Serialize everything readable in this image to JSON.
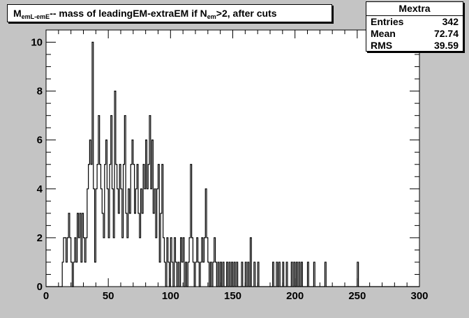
{
  "title": {
    "main": "M",
    "sub1": "emL-emE",
    "mid": "-- mass of leadingEM-extraEM if N",
    "sub2": "em",
    "tail": ">2, after cuts"
  },
  "stats": {
    "name": "Mextra",
    "entries_label": "Entries",
    "entries_value": "342",
    "mean_label": "Mean",
    "mean_value": "72.74",
    "rms_label": "RMS",
    "rms_value": "39.59"
  },
  "chart_data": {
    "type": "bar",
    "histogram": "step",
    "xlim": [
      0,
      300
    ],
    "ylim": [
      0,
      10.5
    ],
    "bin_width": 1,
    "xticks": [
      0,
      50,
      100,
      150,
      200,
      250,
      300
    ],
    "yticks": [
      0,
      2,
      4,
      6,
      8,
      10
    ],
    "bins": [
      [
        13,
        1
      ],
      [
        14,
        2
      ],
      [
        15,
        2
      ],
      [
        16,
        1
      ],
      [
        17,
        2
      ],
      [
        18,
        3
      ],
      [
        19,
        2
      ],
      [
        20,
        1
      ],
      [
        21,
        0
      ],
      [
        22,
        1
      ],
      [
        23,
        2
      ],
      [
        24,
        1
      ],
      [
        25,
        3
      ],
      [
        26,
        2
      ],
      [
        27,
        3
      ],
      [
        28,
        1
      ],
      [
        29,
        3
      ],
      [
        30,
        2
      ],
      [
        31,
        1
      ],
      [
        32,
        2
      ],
      [
        33,
        4
      ],
      [
        34,
        5
      ],
      [
        35,
        6
      ],
      [
        36,
        5
      ],
      [
        37,
        10
      ],
      [
        38,
        4
      ],
      [
        39,
        1
      ],
      [
        40,
        4
      ],
      [
        41,
        5
      ],
      [
        42,
        7
      ],
      [
        43,
        5
      ],
      [
        44,
        4
      ],
      [
        45,
        3
      ],
      [
        46,
        2
      ],
      [
        47,
        5
      ],
      [
        48,
        6
      ],
      [
        49,
        4
      ],
      [
        50,
        2
      ],
      [
        51,
        5
      ],
      [
        52,
        7
      ],
      [
        53,
        4
      ],
      [
        54,
        2
      ],
      [
        55,
        8
      ],
      [
        56,
        5
      ],
      [
        57,
        4
      ],
      [
        58,
        3
      ],
      [
        59,
        5
      ],
      [
        60,
        4
      ],
      [
        61,
        2
      ],
      [
        62,
        5
      ],
      [
        63,
        7
      ],
      [
        64,
        3
      ],
      [
        65,
        2
      ],
      [
        66,
        4
      ],
      [
        67,
        3
      ],
      [
        68,
        5
      ],
      [
        69,
        6
      ],
      [
        70,
        5
      ],
      [
        71,
        3
      ],
      [
        72,
        4
      ],
      [
        73,
        5
      ],
      [
        74,
        3
      ],
      [
        75,
        2
      ],
      [
        76,
        4
      ],
      [
        77,
        3
      ],
      [
        78,
        5
      ],
      [
        79,
        4
      ],
      [
        80,
        6
      ],
      [
        81,
        4
      ],
      [
        82,
        5
      ],
      [
        83,
        7
      ],
      [
        84,
        4
      ],
      [
        85,
        6
      ],
      [
        86,
        3
      ],
      [
        87,
        4
      ],
      [
        88,
        2
      ],
      [
        89,
        4
      ],
      [
        90,
        5
      ],
      [
        91,
        1
      ],
      [
        92,
        3
      ],
      [
        93,
        5
      ],
      [
        94,
        2
      ],
      [
        95,
        1
      ],
      [
        96,
        0
      ],
      [
        97,
        2
      ],
      [
        98,
        1
      ],
      [
        99,
        0
      ],
      [
        100,
        2
      ],
      [
        101,
        1
      ],
      [
        102,
        0
      ],
      [
        103,
        2
      ],
      [
        104,
        1
      ],
      [
        105,
        0
      ],
      [
        106,
        1
      ],
      [
        107,
        0
      ],
      [
        108,
        2
      ],
      [
        109,
        1
      ],
      [
        110,
        2
      ],
      [
        111,
        0
      ],
      [
        112,
        1
      ],
      [
        113,
        0
      ],
      [
        114,
        1
      ],
      [
        115,
        2
      ],
      [
        116,
        5
      ],
      [
        117,
        2
      ],
      [
        118,
        1
      ],
      [
        119,
        0
      ],
      [
        120,
        1
      ],
      [
        121,
        2
      ],
      [
        122,
        1
      ],
      [
        123,
        0
      ],
      [
        124,
        1
      ],
      [
        125,
        2
      ],
      [
        126,
        1
      ],
      [
        127,
        2
      ],
      [
        128,
        4
      ],
      [
        129,
        2
      ],
      [
        130,
        1
      ],
      [
        131,
        0
      ],
      [
        132,
        1
      ],
      [
        133,
        0
      ],
      [
        134,
        1
      ],
      [
        135,
        2
      ],
      [
        136,
        1
      ],
      [
        137,
        0
      ],
      [
        138,
        1
      ],
      [
        139,
        0
      ],
      [
        140,
        1
      ],
      [
        141,
        0
      ],
      [
        142,
        1
      ],
      [
        143,
        0
      ],
      [
        145,
        1
      ],
      [
        146,
        0
      ],
      [
        147,
        1
      ],
      [
        148,
        0
      ],
      [
        149,
        1
      ],
      [
        150,
        0
      ],
      [
        151,
        1
      ],
      [
        152,
        0
      ],
      [
        153,
        1
      ],
      [
        154,
        0
      ],
      [
        157,
        1
      ],
      [
        158,
        0
      ],
      [
        160,
        1
      ],
      [
        161,
        0
      ],
      [
        162,
        1
      ],
      [
        163,
        0
      ],
      [
        164,
        2
      ],
      [
        165,
        0
      ],
      [
        167,
        1
      ],
      [
        168,
        0
      ],
      [
        170,
        1
      ],
      [
        171,
        0
      ],
      [
        182,
        1
      ],
      [
        183,
        0
      ],
      [
        185,
        1
      ],
      [
        186,
        0
      ],
      [
        187,
        1
      ],
      [
        188,
        0
      ],
      [
        190,
        1
      ],
      [
        191,
        0
      ],
      [
        193,
        1
      ],
      [
        194,
        0
      ],
      [
        197,
        1
      ],
      [
        198,
        0
      ],
      [
        199,
        1
      ],
      [
        200,
        0
      ],
      [
        201,
        1
      ],
      [
        202,
        0
      ],
      [
        203,
        1
      ],
      [
        204,
        0
      ],
      [
        205,
        1
      ],
      [
        206,
        0
      ],
      [
        210,
        1
      ],
      [
        211,
        0
      ],
      [
        215,
        1
      ],
      [
        216,
        0
      ],
      [
        224,
        1
      ],
      [
        225,
        0
      ],
      [
        250,
        1
      ],
      [
        251,
        0
      ]
    ]
  }
}
